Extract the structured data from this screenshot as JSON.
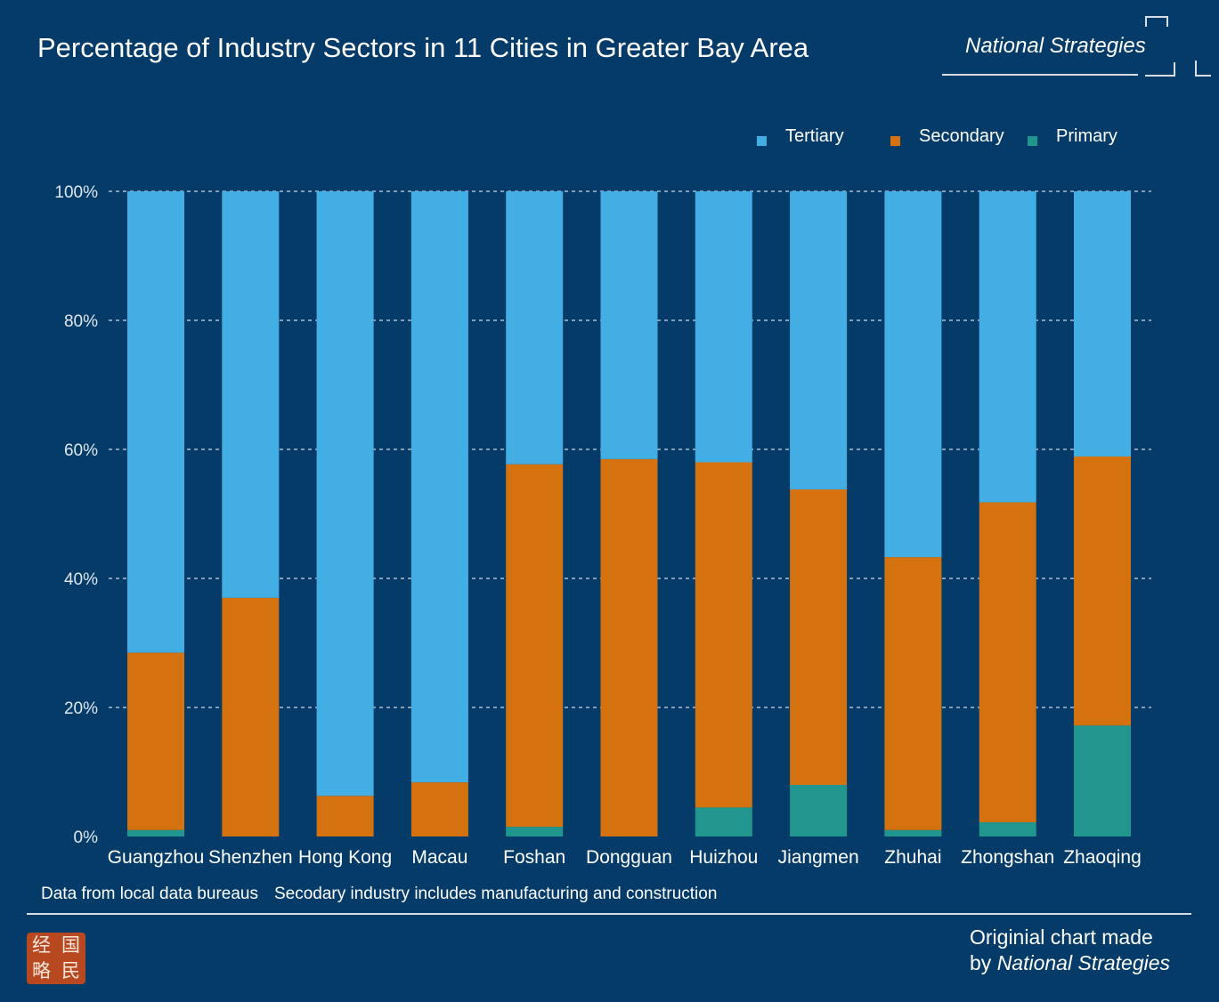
{
  "header": {
    "title": "Percentage of Industry Sectors in 11 Cities in Greater Bay Area",
    "brand": "National Strategies"
  },
  "colors": {
    "background": "#053b68",
    "tertiary": "#42aee3",
    "secondary": "#d3720f",
    "primary": "#21968f",
    "grid": "#c9d6e2"
  },
  "chart_data": {
    "type": "bar",
    "stacked": true,
    "categories": [
      "Guangzhou",
      "Shenzhen",
      "Hong Kong",
      "Macau",
      "Foshan",
      "Dongguan",
      "Huizhou",
      "Jiangmen",
      "Zhuhai",
      "Zhongshan",
      "Zhaoqing"
    ],
    "series": [
      {
        "name": "Primary",
        "color": "#21968f",
        "values": [
          1,
          0,
          0,
          0,
          1.5,
          0,
          4.5,
          8,
          1,
          2.2,
          17.2
        ]
      },
      {
        "name": "Secondary",
        "color": "#d3720f",
        "values": [
          27.5,
          37,
          6.3,
          8.4,
          56.2,
          58.5,
          53.5,
          45.8,
          42.3,
          49.6,
          41.7
        ]
      },
      {
        "name": "Tertiary",
        "color": "#42aee3",
        "values": [
          71.5,
          63,
          93.7,
          91.6,
          42.3,
          41.5,
          42,
          46.2,
          56.7,
          48.2,
          41.1
        ]
      }
    ],
    "legend_order": [
      "Tertiary",
      "Secondary",
      "Primary"
    ],
    "legend_position": "top-right",
    "y_ticks": [
      "0%",
      "20%",
      "40%",
      "60%",
      "80%",
      "100%"
    ],
    "ylim": [
      0,
      100
    ],
    "grid": true,
    "title": "Percentage of Industry Sectors in 11 Cities in Greater Bay Area"
  },
  "footer": {
    "source_note": "Data from local data bureaus",
    "definition_note": "Secodary industry includes manufacturing and construction",
    "credit_line1": "Originial chart made",
    "credit_prefix": "by",
    "credit_brand": "National Strategies",
    "seal_chars": [
      "经",
      "国",
      "略",
      "民"
    ]
  }
}
